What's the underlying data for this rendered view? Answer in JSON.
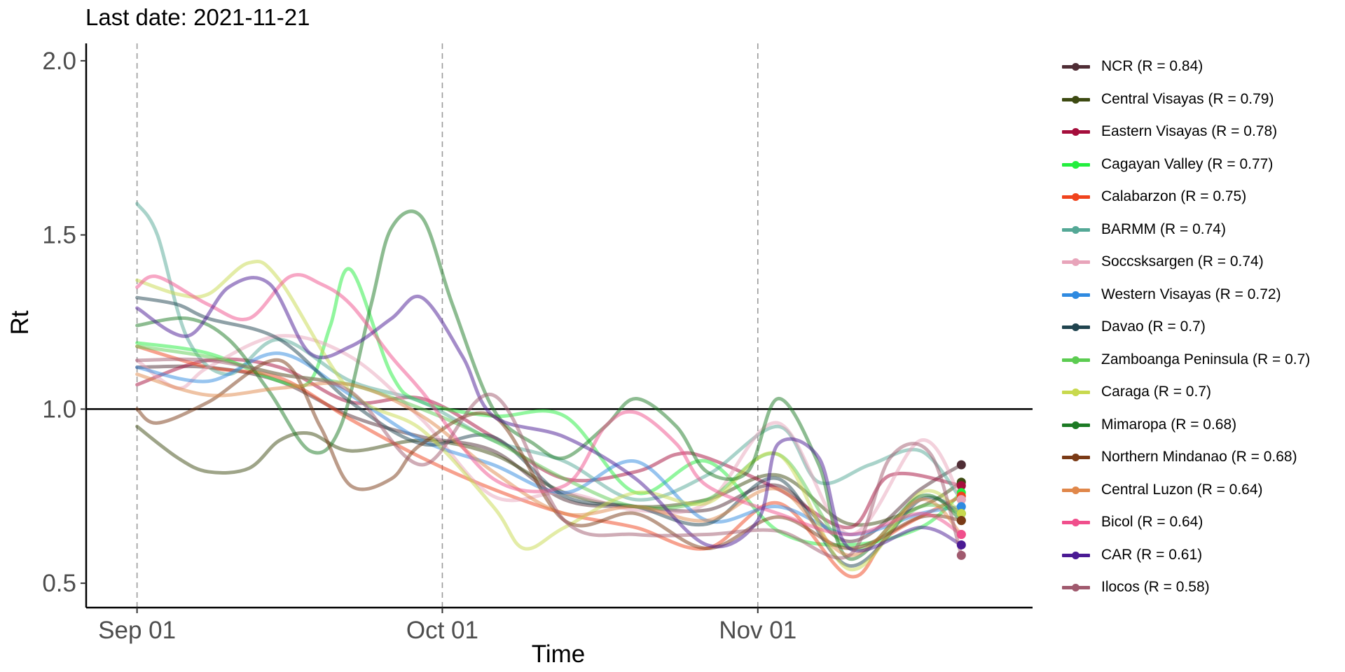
{
  "chart_data": {
    "type": "line",
    "title": "Last date: 2021-11-21",
    "xlabel": "Time",
    "ylabel": "Rt",
    "ylim": [
      0.43,
      2.07
    ],
    "yticks": [
      0.5,
      1.0,
      1.5,
      2.0
    ],
    "ytick_labels": [
      "0.5",
      "1.0",
      "1.5",
      "2.0"
    ],
    "xlim": [
      "2021-08-27",
      "2021-11-28"
    ],
    "xticks": [
      "2021-09-01",
      "2021-10-01",
      "2021-11-01"
    ],
    "xtick_labels": [
      "Sep 01",
      "Oct 01",
      "Nov 01"
    ],
    "reference_line": 1.0,
    "vlines": [
      "2021-09-01",
      "2021-10-01",
      "2021-11-01"
    ],
    "grid": false,
    "legend_position": "right",
    "start_date": "2021-09-01",
    "series": [
      {
        "name": "NCR (R = 0.84)",
        "color": "#4f2d35",
        "x": [
          "2021-09-01",
          "2021-09-08",
          "2021-09-15",
          "2021-09-22",
          "2021-09-29",
          "2021-10-06",
          "2021-10-13",
          "2021-10-20",
          "2021-10-27",
          "2021-11-03",
          "2021-11-10",
          "2021-11-17",
          "2021-11-21"
        ],
        "y": [
          1.12,
          1.12,
          1.08,
          0.98,
          0.92,
          0.88,
          0.74,
          0.72,
          0.71,
          0.78,
          0.62,
          0.77,
          0.84
        ]
      },
      {
        "name": "Central Visayas (R = 0.79)",
        "color": "#3d4a12",
        "x": [
          "2021-09-01",
          "2021-09-05",
          "2021-09-08",
          "2021-09-12",
          "2021-09-15",
          "2021-09-18",
          "2021-09-22",
          "2021-09-29",
          "2021-10-06",
          "2021-10-13",
          "2021-10-20",
          "2021-10-27",
          "2021-11-03",
          "2021-11-10",
          "2021-11-17",
          "2021-11-21"
        ],
        "y": [
          0.95,
          0.86,
          0.82,
          0.83,
          0.91,
          0.93,
          0.88,
          0.91,
          0.87,
          0.76,
          0.72,
          0.74,
          0.81,
          0.67,
          0.72,
          0.79
        ]
      },
      {
        "name": "Eastern Visayas (R = 0.78)",
        "color": "#a50e3c",
        "x": [
          "2021-09-01",
          "2021-09-08",
          "2021-09-15",
          "2021-09-22",
          "2021-09-29",
          "2021-10-06",
          "2021-10-13",
          "2021-10-20",
          "2021-10-24",
          "2021-10-27",
          "2021-11-03",
          "2021-11-10",
          "2021-11-14",
          "2021-11-21"
        ],
        "y": [
          1.07,
          1.14,
          1.12,
          1.02,
          1.03,
          0.92,
          0.8,
          0.82,
          0.87,
          0.86,
          0.77,
          0.66,
          0.81,
          0.78
        ]
      },
      {
        "name": "Cagayan Valley (R = 0.77)",
        "color": "#23ee3e",
        "x": [
          "2021-09-01",
          "2021-09-08",
          "2021-09-15",
          "2021-09-18",
          "2021-09-20",
          "2021-09-22",
          "2021-09-26",
          "2021-09-29",
          "2021-10-06",
          "2021-10-13",
          "2021-10-20",
          "2021-10-27",
          "2021-11-03",
          "2021-11-10",
          "2021-11-17",
          "2021-11-21"
        ],
        "y": [
          1.19,
          1.16,
          1.08,
          1.08,
          1.24,
          1.4,
          1.1,
          1.02,
          0.98,
          0.98,
          0.76,
          0.85,
          0.65,
          0.61,
          0.66,
          0.76
        ]
      },
      {
        "name": "Calabarzon (R = 0.75)",
        "color": "#f0431d",
        "x": [
          "2021-09-01",
          "2021-09-08",
          "2021-09-15",
          "2021-09-22",
          "2021-09-29",
          "2021-10-06",
          "2021-10-13",
          "2021-10-20",
          "2021-10-27",
          "2021-11-03",
          "2021-11-10",
          "2021-11-14",
          "2021-11-21"
        ],
        "y": [
          1.18,
          1.12,
          1.09,
          0.97,
          0.86,
          0.77,
          0.7,
          0.66,
          0.6,
          0.73,
          0.52,
          0.64,
          0.75
        ]
      },
      {
        "name": "BARMM (R = 0.74)",
        "color": "#54a896",
        "x": [
          "2021-09-01",
          "2021-09-03",
          "2021-09-06",
          "2021-09-10",
          "2021-09-15",
          "2021-09-22",
          "2021-09-29",
          "2021-10-06",
          "2021-10-13",
          "2021-10-20",
          "2021-10-27",
          "2021-11-03",
          "2021-11-07",
          "2021-11-12",
          "2021-11-17",
          "2021-11-21"
        ],
        "y": [
          1.59,
          1.5,
          1.2,
          1.1,
          1.2,
          1.08,
          1.02,
          0.91,
          0.85,
          0.74,
          0.81,
          0.95,
          0.79,
          0.84,
          0.88,
          0.74
        ]
      },
      {
        "name": "Soccsksargen (R = 0.74)",
        "color": "#e8a4ba",
        "x": [
          "2021-09-01",
          "2021-09-05",
          "2021-09-08",
          "2021-09-15",
          "2021-09-22",
          "2021-09-29",
          "2021-10-06",
          "2021-10-13",
          "2021-10-20",
          "2021-10-27",
          "2021-11-03",
          "2021-11-10",
          "2021-11-17",
          "2021-11-21"
        ],
        "y": [
          1.14,
          1.06,
          1.12,
          1.21,
          1.15,
          0.97,
          0.75,
          0.76,
          0.71,
          0.73,
          0.96,
          0.64,
          0.91,
          0.74
        ]
      },
      {
        "name": "Western Visayas (R = 0.72)",
        "color": "#2f8ae0",
        "x": [
          "2021-09-01",
          "2021-09-08",
          "2021-09-15",
          "2021-09-22",
          "2021-09-29",
          "2021-10-06",
          "2021-10-13",
          "2021-10-20",
          "2021-10-27",
          "2021-11-03",
          "2021-11-10",
          "2021-11-17",
          "2021-11-21"
        ],
        "y": [
          1.12,
          1.08,
          1.16,
          1.04,
          0.91,
          0.84,
          0.76,
          0.85,
          0.68,
          0.72,
          0.64,
          0.7,
          0.72
        ]
      },
      {
        "name": "Davao (R = 0.7)",
        "color": "#20444f",
        "x": [
          "2021-09-01",
          "2021-09-05",
          "2021-09-08",
          "2021-09-15",
          "2021-09-22",
          "2021-09-29",
          "2021-10-06",
          "2021-10-13",
          "2021-10-20",
          "2021-10-27",
          "2021-11-03",
          "2021-11-10",
          "2021-11-17",
          "2021-11-21"
        ],
        "y": [
          1.32,
          1.3,
          1.26,
          1.2,
          1.02,
          0.9,
          0.92,
          0.75,
          0.72,
          0.67,
          0.8,
          0.55,
          0.74,
          0.7
        ]
      },
      {
        "name": "Zamboanga Peninsula (R = 0.7)",
        "color": "#5ccc51",
        "x": [
          "2021-09-01",
          "2021-09-08",
          "2021-09-15",
          "2021-09-22",
          "2021-09-29",
          "2021-10-06",
          "2021-10-13",
          "2021-10-20",
          "2021-10-27",
          "2021-11-03",
          "2021-11-10",
          "2021-11-17",
          "2021-11-21"
        ],
        "y": [
          1.18,
          1.15,
          1.1,
          1.07,
          1.0,
          0.91,
          0.8,
          0.72,
          0.74,
          0.87,
          0.6,
          0.72,
          0.7
        ]
      },
      {
        "name": "Caraga (R = 0.7)",
        "color": "#c8d94e",
        "x": [
          "2021-09-01",
          "2021-09-05",
          "2021-09-08",
          "2021-09-12",
          "2021-09-15",
          "2021-09-22",
          "2021-09-29",
          "2021-10-06",
          "2021-10-09",
          "2021-10-13",
          "2021-10-20",
          "2021-10-27",
          "2021-11-03",
          "2021-11-10",
          "2021-11-17",
          "2021-11-21"
        ],
        "y": [
          1.37,
          1.33,
          1.33,
          1.42,
          1.37,
          1.05,
          0.94,
          0.72,
          0.6,
          0.66,
          0.76,
          0.73,
          0.87,
          0.54,
          0.76,
          0.7
        ]
      },
      {
        "name": "Mimaropa (R = 0.68)",
        "color": "#1c7a24",
        "x": [
          "2021-09-01",
          "2021-09-06",
          "2021-09-10",
          "2021-09-14",
          "2021-09-18",
          "2021-09-21",
          "2021-09-24",
          "2021-09-26",
          "2021-09-29",
          "2021-10-02",
          "2021-10-06",
          "2021-10-10",
          "2021-10-13",
          "2021-10-17",
          "2021-10-20",
          "2021-10-24",
          "2021-10-27",
          "2021-10-31",
          "2021-11-03",
          "2021-11-07",
          "2021-11-10",
          "2021-11-17",
          "2021-11-21"
        ],
        "y": [
          1.24,
          1.26,
          1.2,
          1.05,
          0.88,
          0.95,
          1.3,
          1.52,
          1.55,
          1.3,
          1.0,
          0.9,
          0.86,
          0.95,
          1.03,
          0.95,
          0.82,
          0.82,
          1.03,
          0.84,
          0.57,
          0.75,
          0.68
        ]
      },
      {
        "name": "Northern Mindanao (R = 0.68)",
        "color": "#7a3a16",
        "x": [
          "2021-09-01",
          "2021-09-03",
          "2021-09-08",
          "2021-09-15",
          "2021-09-19",
          "2021-09-22",
          "2021-09-26",
          "2021-09-29",
          "2021-10-06",
          "2021-10-13",
          "2021-10-20",
          "2021-10-27",
          "2021-11-03",
          "2021-11-10",
          "2021-11-17",
          "2021-11-21"
        ],
        "y": [
          1.0,
          0.96,
          1.02,
          1.14,
          0.95,
          0.78,
          0.8,
          0.9,
          0.98,
          0.68,
          0.7,
          0.6,
          0.69,
          0.6,
          0.69,
          0.68
        ]
      },
      {
        "name": "Central Luzon (R = 0.64)",
        "color": "#e0874a",
        "x": [
          "2021-09-01",
          "2021-09-08",
          "2021-09-15",
          "2021-09-22",
          "2021-09-29",
          "2021-10-06",
          "2021-10-13",
          "2021-10-20",
          "2021-10-27",
          "2021-11-03",
          "2021-11-10",
          "2021-11-17",
          "2021-11-21"
        ],
        "y": [
          1.1,
          1.04,
          1.06,
          1.07,
          0.98,
          0.82,
          0.7,
          0.72,
          0.68,
          0.77,
          0.58,
          0.74,
          0.64
        ]
      },
      {
        "name": "Bicol (R = 0.64)",
        "color": "#f04f8c",
        "x": [
          "2021-09-01",
          "2021-09-03",
          "2021-09-08",
          "2021-09-12",
          "2021-09-16",
          "2021-09-19",
          "2021-09-22",
          "2021-09-26",
          "2021-09-29",
          "2021-10-06",
          "2021-10-13",
          "2021-10-17",
          "2021-10-20",
          "2021-10-24",
          "2021-10-27",
          "2021-11-03",
          "2021-11-10",
          "2021-11-17",
          "2021-11-21"
        ],
        "y": [
          1.35,
          1.38,
          1.3,
          1.26,
          1.38,
          1.36,
          1.3,
          1.15,
          1.05,
          0.8,
          0.78,
          0.95,
          0.99,
          0.9,
          0.78,
          0.7,
          0.64,
          0.7,
          0.64
        ]
      },
      {
        "name": "CAR (R = 0.61)",
        "color": "#4a1a94",
        "x": [
          "2021-09-01",
          "2021-09-06",
          "2021-09-10",
          "2021-09-14",
          "2021-09-18",
          "2021-09-22",
          "2021-09-26",
          "2021-09-29",
          "2021-10-03",
          "2021-10-06",
          "2021-10-13",
          "2021-10-20",
          "2021-10-27",
          "2021-11-01",
          "2021-11-03",
          "2021-11-07",
          "2021-11-10",
          "2021-11-17",
          "2021-11-21"
        ],
        "y": [
          1.29,
          1.21,
          1.35,
          1.36,
          1.16,
          1.18,
          1.26,
          1.32,
          1.15,
          0.98,
          0.92,
          0.8,
          0.61,
          0.68,
          0.9,
          0.86,
          0.6,
          0.66,
          0.61
        ]
      },
      {
        "name": "Ilocos (R = 0.58)",
        "color": "#a05a6e",
        "x": [
          "2021-09-01",
          "2021-09-08",
          "2021-09-15",
          "2021-09-22",
          "2021-09-29",
          "2021-10-06",
          "2021-10-13",
          "2021-10-20",
          "2021-10-27",
          "2021-11-03",
          "2021-11-10",
          "2021-11-14",
          "2021-11-18",
          "2021-11-21"
        ],
        "y": [
          1.14,
          1.14,
          1.1,
          1.05,
          0.84,
          1.04,
          0.68,
          0.64,
          0.64,
          0.65,
          0.58,
          0.86,
          0.87,
          0.58
        ]
      }
    ]
  }
}
